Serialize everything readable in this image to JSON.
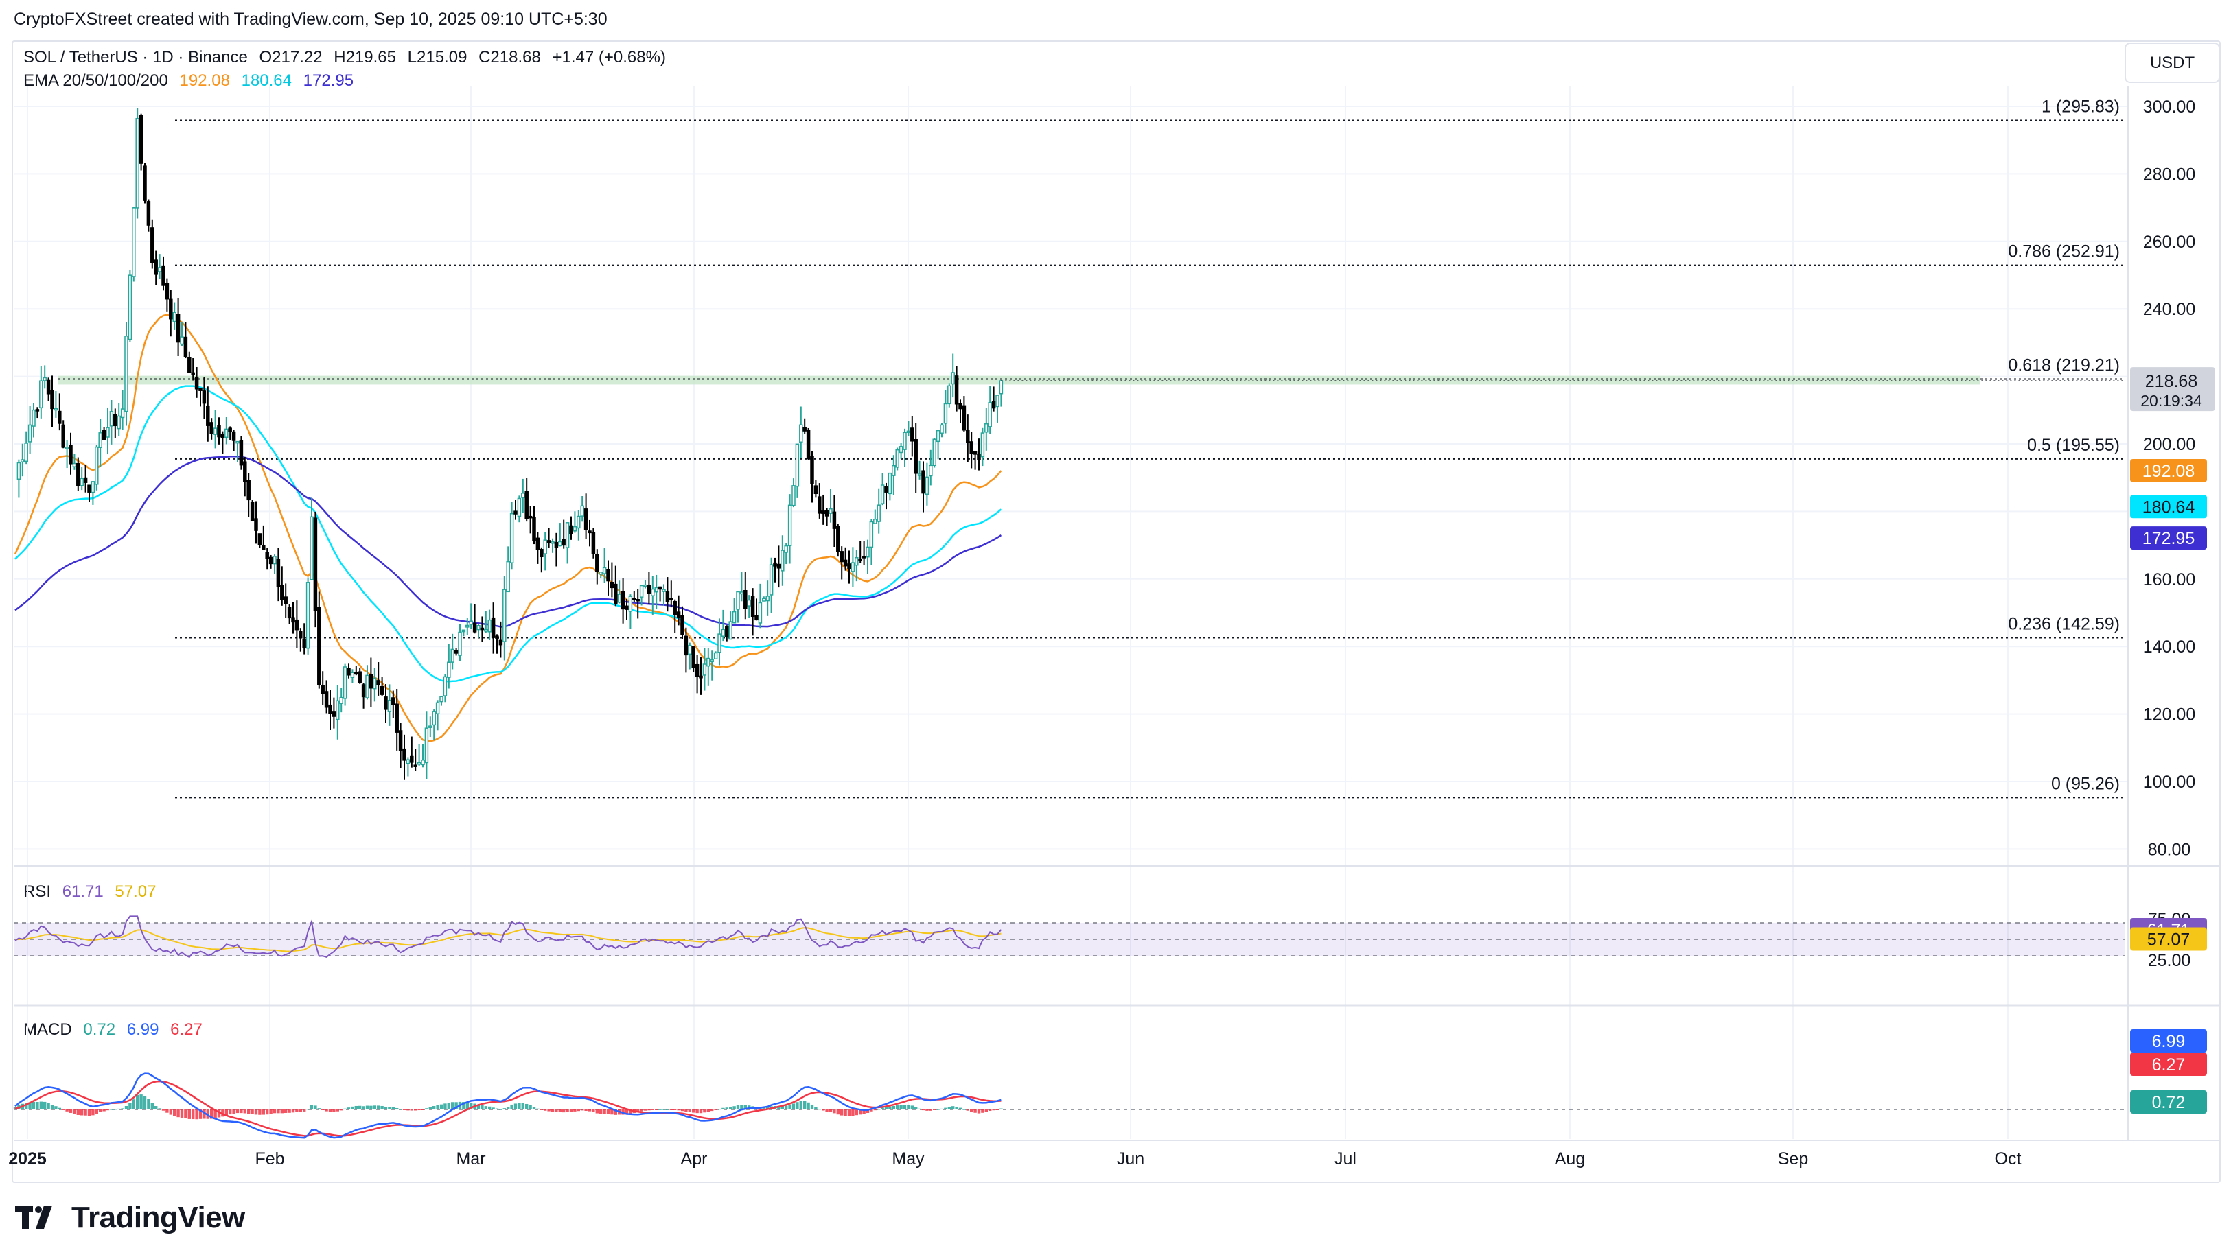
{
  "header": {
    "attribution": "CryptoFXStreet created with TradingView.com, Sep 10, 2025 09:10 UTC+5:30"
  },
  "symbol": {
    "pair": "SOL / TetherUS · 1D · Binance",
    "ohlc_open": "O217.22",
    "ohlc_high": "H219.65",
    "ohlc_low": "L215.09",
    "ohlc_close": "C218.68",
    "change": "+1.47 (+0.68%)",
    "currency_button": "USDT"
  },
  "ema_legend": {
    "label": "EMA 20/50/100/200",
    "ema20": "192.08",
    "ema50": "180.64",
    "ema100": "172.95"
  },
  "rsi_legend": {
    "label": "RSI",
    "rsi": "61.71",
    "ma": "57.07"
  },
  "macd_legend": {
    "label": "MACD",
    "hist": "0.72",
    "macd": "6.99",
    "signal": "6.27"
  },
  "price_axis": {
    "ticks": [
      "300.00",
      "280.00",
      "260.00",
      "240.00",
      "220.00",
      "200.00",
      "180.00",
      "160.00",
      "140.00",
      "120.00",
      "100.00",
      "80.00"
    ]
  },
  "rsi_axis": {
    "ticks": [
      "75.00",
      "25.00"
    ]
  },
  "time_axis": {
    "labels": [
      "2025",
      "Feb",
      "Mar",
      "Apr",
      "May",
      "Jun",
      "Jul",
      "Aug",
      "Sep",
      "Oct"
    ]
  },
  "fib_levels": [
    {
      "label": "1 (295.83)",
      "value": 295.83
    },
    {
      "label": "0.786 (252.91)",
      "value": 252.91
    },
    {
      "label": "0.618 (219.21)",
      "value": 219.21
    },
    {
      "label": "0.5 (195.55)",
      "value": 195.55
    },
    {
      "label": "0.236 (142.59)",
      "value": 142.59
    },
    {
      "label": "0 (95.26)",
      "value": 95.26
    }
  ],
  "price_badges": {
    "last_price": "218.68",
    "countdown": "20:19:34",
    "ema20": "192.08",
    "ema50": "180.64",
    "ema100": "172.95",
    "rsi": "61.71",
    "rsi_ma": "57.07",
    "macd": "6.99",
    "signal": "6.27",
    "hist": "0.72"
  },
  "colors": {
    "up": "#26a69a",
    "down": "#000000",
    "ema20": "#f7931a",
    "ema50": "#00e5ff",
    "ema100": "#3d2fd1",
    "rsi_line": "#7e57c2",
    "rsi_ma": "#f5c518",
    "macd_line": "#2962ff",
    "signal_line": "#f23645",
    "last_price_badge": "#d1d4dc"
  },
  "chart_data": {
    "type": "candlestick",
    "symbol": "SOL / TetherUS",
    "interval": "1D",
    "ylim": [
      80,
      305
    ],
    "months": [
      "Jan",
      "Feb",
      "Mar",
      "Apr",
      "May",
      "Jun",
      "Jul",
      "Aug",
      "Sep"
    ],
    "monthly_closes": [
      233,
      172,
      125,
      147,
      160,
      157,
      178,
      201,
      218.68
    ],
    "anchors": [
      [
        0,
        190
      ],
      [
        5,
        210
      ],
      [
        8,
        219
      ],
      [
        12,
        205
      ],
      [
        17,
        190
      ],
      [
        20,
        188
      ],
      [
        24,
        204
      ],
      [
        29,
        210
      ],
      [
        33,
        293
      ],
      [
        37,
        255
      ],
      [
        40,
        248
      ],
      [
        44,
        232
      ],
      [
        48,
        220
      ],
      [
        53,
        205
      ],
      [
        57,
        205
      ],
      [
        61,
        195
      ],
      [
        65,
        172
      ],
      [
        70,
        165
      ],
      [
        74,
        146
      ],
      [
        78,
        138
      ],
      [
        80,
        178
      ],
      [
        82,
        130
      ],
      [
        86,
        118
      ],
      [
        90,
        135
      ],
      [
        94,
        128
      ],
      [
        98,
        128
      ],
      [
        102,
        120
      ],
      [
        106,
        105
      ],
      [
        109,
        103
      ],
      [
        113,
        124
      ],
      [
        117,
        133
      ],
      [
        121,
        148
      ],
      [
        126,
        147
      ],
      [
        131,
        144
      ],
      [
        134,
        180
      ],
      [
        137,
        186
      ],
      [
        141,
        167
      ],
      [
        145,
        170
      ],
      [
        149,
        174
      ],
      [
        153,
        183
      ],
      [
        157,
        163
      ],
      [
        161,
        158
      ],
      [
        164,
        150
      ],
      [
        168,
        154
      ],
      [
        172,
        157
      ],
      [
        176,
        153
      ],
      [
        180,
        144
      ],
      [
        184,
        130
      ],
      [
        188,
        136
      ],
      [
        192,
        146
      ],
      [
        196,
        155
      ],
      [
        200,
        150
      ],
      [
        204,
        161
      ],
      [
        208,
        172
      ],
      [
        212,
        207
      ],
      [
        216,
        183
      ],
      [
        220,
        178
      ],
      [
        224,
        164
      ],
      [
        228,
        167
      ],
      [
        232,
        178
      ],
      [
        236,
        192
      ],
      [
        240,
        206
      ],
      [
        245,
        187
      ],
      [
        249,
        204
      ],
      [
        253,
        218
      ],
      [
        256,
        202
      ],
      [
        260,
        198
      ],
      [
        263,
        209
      ],
      [
        266,
        218.68
      ]
    ],
    "ema20_end": 192.08,
    "ema50_end": 180.64,
    "ema100_end": 172.95,
    "rsi_end": 61.71,
    "rsi_ma_end": 57.07,
    "macd_end": 6.99,
    "signal_end": 6.27,
    "hist_end": 0.72
  }
}
